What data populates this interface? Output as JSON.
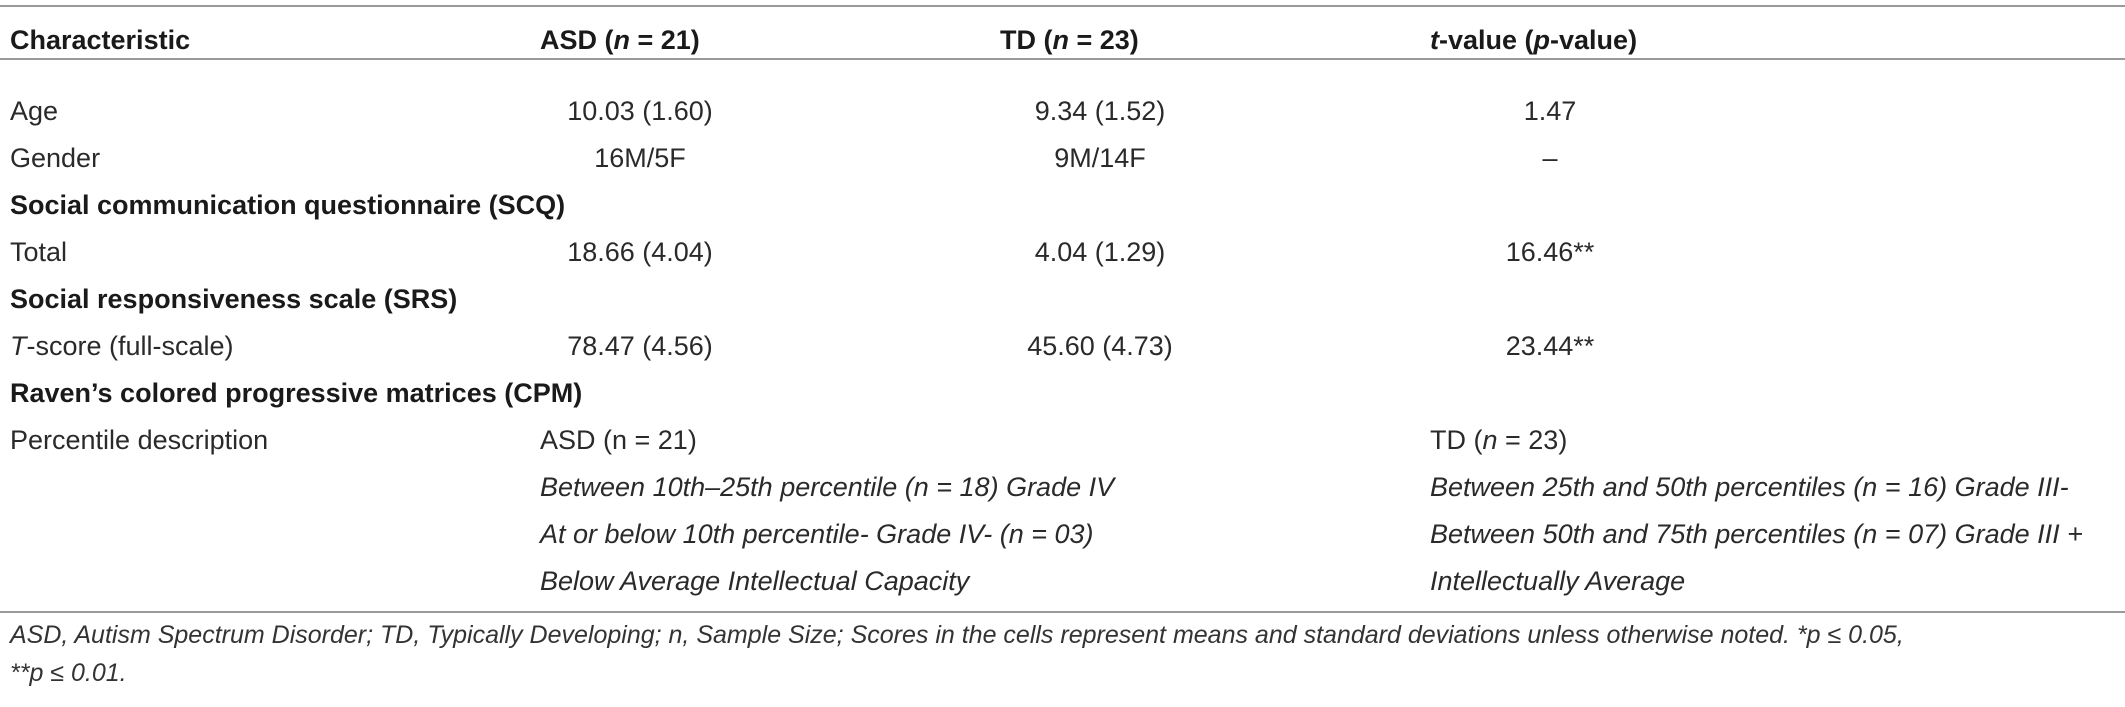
{
  "header": {
    "characteristic": "Characteristic",
    "asd_a": "ASD (",
    "asd_n": "n",
    "asd_b": " = 21)",
    "td_a": "TD (",
    "td_n": "n",
    "td_b": " = 23)",
    "t_t": "t",
    "t_mid": "-value (",
    "t_p": "p",
    "t_end": "-value)"
  },
  "rows": {
    "age": {
      "label": "Age",
      "asd": "10.03 (1.60)",
      "td": "9.34 (1.52)",
      "t": "1.47"
    },
    "gender": {
      "label": "Gender",
      "asd": "16M/5F",
      "td": "9M/14F",
      "t": "–"
    },
    "scq_section": "Social communication questionnaire (SCQ)",
    "total": {
      "label": "Total",
      "asd": "18.66 (4.04)",
      "td": "4.04 (1.29)",
      "t": "16.46**"
    },
    "srs_section": "Social responsiveness scale (SRS)",
    "tscore": {
      "label_t": "T",
      "label_rest": "-score (full-scale)",
      "asd": "78.47 (4.56)",
      "td": "45.60 (4.73)",
      "t": "23.44**"
    },
    "cpm_section": "Raven’s colored progressive matrices (CPM)",
    "percentile": {
      "label": "Percentile description",
      "asd_head": "ASD (n = 21)",
      "td_head_a": "TD (",
      "td_head_n": "n",
      "td_head_b": " = 23)",
      "asd_lines": [
        "Between 10th–25th percentile (n = 18) Grade IV",
        "At or below 10th percentile- Grade IV- (n = 03)",
        "Below Average Intellectual Capacity"
      ],
      "td_lines": [
        "Between 25th and 50th percentiles (n = 16) Grade III-",
        "Between 50th and 75th percentiles (n = 07) Grade III +",
        "Intellectually Average"
      ]
    }
  },
  "footnote": {
    "line1": "ASD, Autism Spectrum Disorder; TD, Typically Developing; n, Sample Size; Scores in the cells represent means and standard deviations unless otherwise noted. *p ≤ 0.05,",
    "line2": "**p ≤ 0.01."
  }
}
